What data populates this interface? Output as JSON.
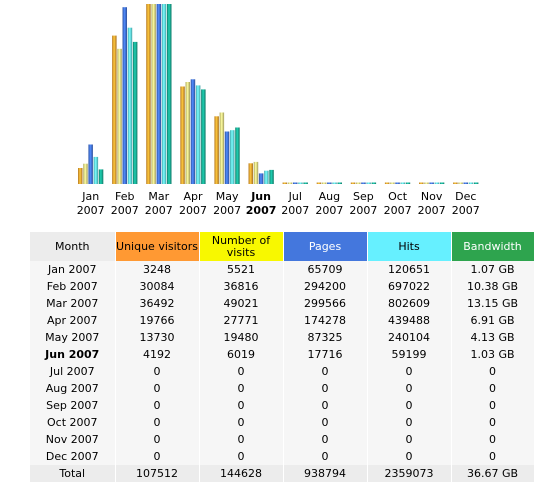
{
  "chart_data": {
    "type": "bar",
    "categories": [
      {
        "month": "Jan",
        "year": "2007"
      },
      {
        "month": "Feb",
        "year": "2007"
      },
      {
        "month": "Mar",
        "year": "2007"
      },
      {
        "month": "Apr",
        "year": "2007"
      },
      {
        "month": "May",
        "year": "2007"
      },
      {
        "month": "Jun",
        "year": "2007"
      },
      {
        "month": "Jul",
        "year": "2007"
      },
      {
        "month": "Aug",
        "year": "2007"
      },
      {
        "month": "Sep",
        "year": "2007"
      },
      {
        "month": "Oct",
        "year": "2007"
      },
      {
        "month": "Nov",
        "year": "2007"
      },
      {
        "month": "Dec",
        "year": "2007"
      }
    ],
    "current_month_index": 5,
    "series": [
      {
        "name": "Unique visitors",
        "key": "uv",
        "color": "#f0a030",
        "values": [
          3248,
          30084,
          36492,
          19766,
          13730,
          4192,
          0,
          0,
          0,
          0,
          0,
          0
        ]
      },
      {
        "name": "Number of visits",
        "key": "visits",
        "color": "#e4dc80",
        "values": [
          5521,
          36816,
          49021,
          27771,
          19480,
          6019,
          0,
          0,
          0,
          0,
          0,
          0
        ]
      },
      {
        "name": "Pages",
        "key": "pages",
        "color": "#4070d8",
        "values": [
          65709,
          294200,
          299566,
          174278,
          87325,
          17716,
          0,
          0,
          0,
          0,
          0,
          0
        ]
      },
      {
        "name": "Hits",
        "key": "hits",
        "color": "#60e0e8",
        "values": [
          120651,
          697022,
          802609,
          439488,
          240104,
          59199,
          0,
          0,
          0,
          0,
          0,
          0
        ]
      },
      {
        "name": "Bandwidth",
        "key": "bw",
        "color": "#18a890",
        "values": [
          1.07,
          10.38,
          13.15,
          6.91,
          4.13,
          1.03,
          0,
          0,
          0,
          0,
          0,
          0
        ]
      }
    ],
    "max_by_series": {
      "uv": 36492,
      "visits": 49021,
      "pages": 299566,
      "hits": 802609,
      "bw": 13.15
    }
  },
  "table": {
    "headers": {
      "month": "Month",
      "uv": "Unique visitors",
      "visits": "Number of visits",
      "pages": "Pages",
      "hits": "Hits",
      "bw": "Bandwidth"
    },
    "header_colors": {
      "month": "#ececec",
      "uv": "#ff9933",
      "visits": "#f8f800",
      "pages": "#4477dd",
      "hits": "#66f0ff",
      "bw": "#2ea44e"
    },
    "rows": [
      {
        "month": "Jan 2007",
        "uv": "3248",
        "visits": "5521",
        "pages": "65709",
        "hits": "120651",
        "bw": "1.07 GB"
      },
      {
        "month": "Feb 2007",
        "uv": "30084",
        "visits": "36816",
        "pages": "294200",
        "hits": "697022",
        "bw": "10.38 GB"
      },
      {
        "month": "Mar 2007",
        "uv": "36492",
        "visits": "49021",
        "pages": "299566",
        "hits": "802609",
        "bw": "13.15 GB"
      },
      {
        "month": "Apr 2007",
        "uv": "19766",
        "visits": "27771",
        "pages": "174278",
        "hits": "439488",
        "bw": "6.91 GB"
      },
      {
        "month": "May 2007",
        "uv": "13730",
        "visits": "19480",
        "pages": "87325",
        "hits": "240104",
        "bw": "4.13 GB"
      },
      {
        "month": "Jun 2007",
        "uv": "4192",
        "visits": "6019",
        "pages": "17716",
        "hits": "59199",
        "bw": "1.03 GB"
      },
      {
        "month": "Jul 2007",
        "uv": "0",
        "visits": "0",
        "pages": "0",
        "hits": "0",
        "bw": "0"
      },
      {
        "month": "Aug 2007",
        "uv": "0",
        "visits": "0",
        "pages": "0",
        "hits": "0",
        "bw": "0"
      },
      {
        "month": "Sep 2007",
        "uv": "0",
        "visits": "0",
        "pages": "0",
        "hits": "0",
        "bw": "0"
      },
      {
        "month": "Oct 2007",
        "uv": "0",
        "visits": "0",
        "pages": "0",
        "hits": "0",
        "bw": "0"
      },
      {
        "month": "Nov 2007",
        "uv": "0",
        "visits": "0",
        "pages": "0",
        "hits": "0",
        "bw": "0"
      },
      {
        "month": "Dec 2007",
        "uv": "0",
        "visits": "0",
        "pages": "0",
        "hits": "0",
        "bw": "0"
      }
    ],
    "total": {
      "month": "Total",
      "uv": "107512",
      "visits": "144628",
      "pages": "938794",
      "hits": "2359073",
      "bw": "36.67 GB"
    }
  }
}
